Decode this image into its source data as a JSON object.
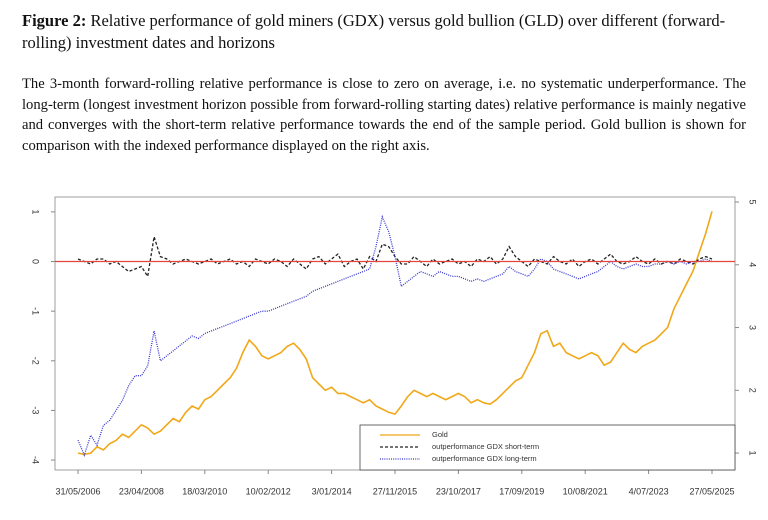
{
  "caption": {
    "label": "Figure 2:",
    "text": "Relative performance of gold miners (GDX) versus gold bullion (GLD) over different (forward-rolling) investment dates and horizons"
  },
  "description": "The 3-month forward-rolling relative performance is close to zero on average, i.e. no systematic underperformance. The long-term (longest investment horizon possible from forward-rolling starting dates) relative performance is mainly negative and converges with the short-term relative performance towards the end of the sample period. Gold bullion is shown for comparison with the indexed performance displayed on the right axis.",
  "chart_data": {
    "type": "line",
    "categories": [
      "31/05/2006",
      null,
      null,
      null,
      null,
      null,
      null,
      null,
      null,
      null,
      "23/04/2008",
      null,
      null,
      null,
      null,
      null,
      null,
      null,
      null,
      null,
      "18/03/2010",
      null,
      null,
      null,
      null,
      null,
      null,
      null,
      null,
      null,
      "10/02/2012",
      null,
      null,
      null,
      null,
      null,
      null,
      null,
      null,
      null,
      "3/01/2014",
      null,
      null,
      null,
      null,
      null,
      null,
      null,
      null,
      null,
      "27/11/2015",
      null,
      null,
      null,
      null,
      null,
      null,
      null,
      null,
      null,
      "23/10/2017",
      null,
      null,
      null,
      null,
      null,
      null,
      null,
      null,
      null,
      "17/09/2019",
      null,
      null,
      null,
      null,
      null,
      null,
      null,
      null,
      null,
      "10/08/2021",
      null,
      null,
      null,
      null,
      null,
      null,
      null,
      null,
      null,
      "4/07/2023",
      null,
      null,
      null,
      null,
      null,
      null,
      null,
      null,
      null,
      "27/05/2025"
    ],
    "series": [
      {
        "name": "Gold",
        "color": "#f0a818",
        "style": "solid",
        "axis": "y2",
        "values": [
          1.0,
          0.98,
          1.0,
          1.1,
          1.05,
          1.15,
          1.2,
          1.3,
          1.25,
          1.35,
          1.45,
          1.4,
          1.3,
          1.35,
          1.45,
          1.55,
          1.5,
          1.65,
          1.75,
          1.7,
          1.85,
          1.9,
          2.0,
          2.1,
          2.2,
          2.35,
          2.6,
          2.8,
          2.7,
          2.55,
          2.5,
          2.55,
          2.6,
          2.7,
          2.75,
          2.65,
          2.5,
          2.2,
          2.1,
          2.0,
          2.05,
          1.95,
          1.95,
          1.9,
          1.85,
          1.8,
          1.85,
          1.75,
          1.7,
          1.65,
          1.62,
          1.75,
          1.9,
          2.0,
          1.95,
          1.9,
          1.95,
          1.9,
          1.85,
          1.9,
          1.95,
          1.9,
          1.8,
          1.85,
          1.8,
          1.78,
          1.85,
          1.95,
          2.05,
          2.15,
          2.2,
          2.4,
          2.6,
          2.9,
          2.95,
          2.7,
          2.75,
          2.6,
          2.55,
          2.5,
          2.55,
          2.6,
          2.55,
          2.4,
          2.45,
          2.6,
          2.75,
          2.65,
          2.6,
          2.7,
          2.75,
          2.8,
          2.9,
          3.0,
          3.3,
          3.5,
          3.7,
          3.9,
          4.2,
          4.5,
          4.85
        ]
      },
      {
        "name": "outperformance GDX short-term",
        "color": "#222222",
        "style": "dashed",
        "values": [
          0.05,
          0,
          -0.05,
          0.05,
          0.05,
          -0.05,
          0,
          -0.1,
          -0.2,
          -0.15,
          -0.1,
          -0.3,
          0.5,
          0.1,
          0.05,
          -0.05,
          0,
          0.05,
          0,
          -0.05,
          0,
          0.05,
          -0.05,
          0,
          0.05,
          -0.05,
          0,
          -0.1,
          0.05,
          0,
          -0.05,
          0.05,
          0,
          -0.1,
          0.05,
          -0.05,
          -0.15,
          0.05,
          0.1,
          -0.05,
          0.05,
          0.15,
          -0.1,
          0,
          0.05,
          -0.15,
          0.1,
          0,
          0.35,
          0.3,
          0.1,
          -0.05,
          -0.05,
          0.1,
          0,
          -0.1,
          0.05,
          -0.05,
          0,
          0.05,
          -0.05,
          0,
          -0.1,
          0.05,
          0,
          0.1,
          -0.05,
          0.05,
          0.3,
          0.1,
          0,
          -0.1,
          0.05,
          0,
          -0.05,
          0.1,
          0,
          -0.05,
          0.05,
          -0.1,
          0,
          0.05,
          -0.05,
          0.05,
          0.15,
          0,
          -0.05,
          0,
          0.1,
          0,
          -0.05,
          0.05,
          -0.05,
          0,
          -0.05,
          0.05,
          0,
          -0.05,
          0.05,
          0.1,
          0.05
        ]
      },
      {
        "name": "outperformance GDX long-term",
        "color": "#3535d0",
        "style": "dotted",
        "values": [
          -3.6,
          -3.9,
          -3.5,
          -3.7,
          -3.3,
          -3.2,
          -3.0,
          -2.8,
          -2.5,
          -2.3,
          -2.3,
          -2.1,
          -1.4,
          -2.0,
          -1.9,
          -1.8,
          -1.7,
          -1.6,
          -1.5,
          -1.55,
          -1.45,
          -1.4,
          -1.35,
          -1.3,
          -1.25,
          -1.2,
          -1.15,
          -1.1,
          -1.05,
          -1.0,
          -1.0,
          -0.95,
          -0.9,
          -0.85,
          -0.8,
          -0.75,
          -0.7,
          -0.6,
          -0.55,
          -0.5,
          -0.45,
          -0.4,
          -0.35,
          -0.3,
          -0.25,
          -0.2,
          -0.15,
          0.3,
          0.9,
          0.6,
          0.1,
          -0.5,
          -0.4,
          -0.3,
          -0.2,
          -0.25,
          -0.3,
          -0.2,
          -0.25,
          -0.3,
          -0.3,
          -0.35,
          -0.4,
          -0.35,
          -0.4,
          -0.35,
          -0.3,
          -0.25,
          -0.1,
          -0.2,
          -0.25,
          -0.3,
          -0.15,
          0.05,
          0,
          -0.15,
          -0.2,
          -0.25,
          -0.3,
          -0.35,
          -0.3,
          -0.25,
          -0.2,
          -0.1,
          0,
          -0.1,
          -0.15,
          -0.1,
          -0.05,
          -0.1,
          -0.1,
          -0.05,
          -0.05,
          0,
          -0.05,
          0,
          -0.05,
          0,
          0,
          0.05,
          0
        ]
      }
    ],
    "ylim": [
      -4.2,
      1.3
    ],
    "yticks": [
      -4,
      -3,
      -2,
      -1,
      0,
      1
    ],
    "y2lim": [
      0.73,
      5.08
    ],
    "y2ticks": [
      1,
      2,
      3,
      4,
      5
    ],
    "reference_line": {
      "value": 0,
      "color": "#e4453a"
    },
    "grid": false,
    "legend": "lower right"
  }
}
